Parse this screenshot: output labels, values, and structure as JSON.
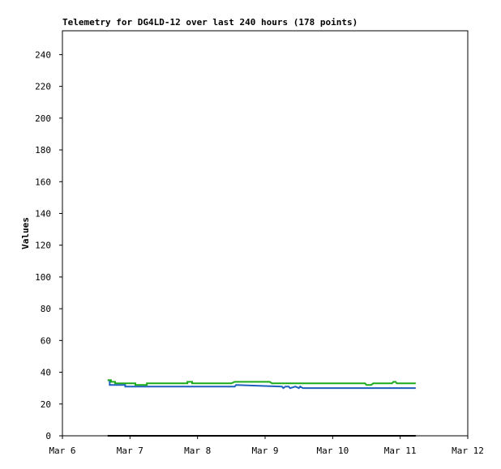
{
  "chart_data": {
    "type": "line",
    "title": "Telemetry for DG4LD-12 over last 240 hours (178 points)",
    "y_label": "Values",
    "xlim": [
      6,
      12
    ],
    "xticks": [
      {
        "value": 6,
        "label": "Mar 6"
      },
      {
        "value": 7,
        "label": "Mar 7"
      },
      {
        "value": 8,
        "label": "Mar 8"
      },
      {
        "value": 9,
        "label": "Mar 9"
      },
      {
        "value": 10,
        "label": "Mar 10"
      },
      {
        "value": 11,
        "label": "Mar 11"
      },
      {
        "value": 12,
        "label": "Mar 12"
      }
    ],
    "ylim": [
      0,
      255
    ],
    "yticks": [
      0,
      20,
      40,
      60,
      80,
      100,
      120,
      140,
      160,
      180,
      200,
      220,
      240
    ],
    "series": [
      {
        "color": "#1f5fbf",
        "x": [
          6.67,
          6.7,
          6.7,
          6.93,
          6.93,
          8.55,
          8.57,
          9.25,
          9.27,
          9.3,
          9.35,
          9.37,
          9.45,
          9.5,
          9.52,
          9.56,
          9.6,
          11.23
        ],
        "values": [
          35,
          35,
          32,
          32,
          31,
          31,
          32,
          31,
          30,
          31,
          31,
          30,
          31,
          30,
          31,
          30,
          30,
          30
        ]
      },
      {
        "color": "#1aaa1a",
        "x": [
          6.67,
          6.72,
          6.72,
          6.78,
          6.78,
          7.08,
          7.08,
          7.25,
          7.25,
          7.85,
          7.85,
          7.92,
          7.92,
          8.5,
          8.55,
          9.07,
          9.1,
          10.48,
          10.5,
          10.57,
          10.6,
          10.88,
          10.9,
          10.93,
          10.95,
          11.23
        ],
        "values": [
          35,
          35,
          34,
          34,
          33,
          33,
          32,
          32,
          33,
          33,
          34,
          34,
          33,
          33,
          34,
          34,
          33,
          33,
          32,
          32,
          33,
          33,
          34,
          34,
          33,
          33
        ]
      },
      {
        "color": "#000000",
        "x": [
          6.67,
          11.23
        ],
        "values": [
          0,
          0
        ]
      }
    ]
  }
}
